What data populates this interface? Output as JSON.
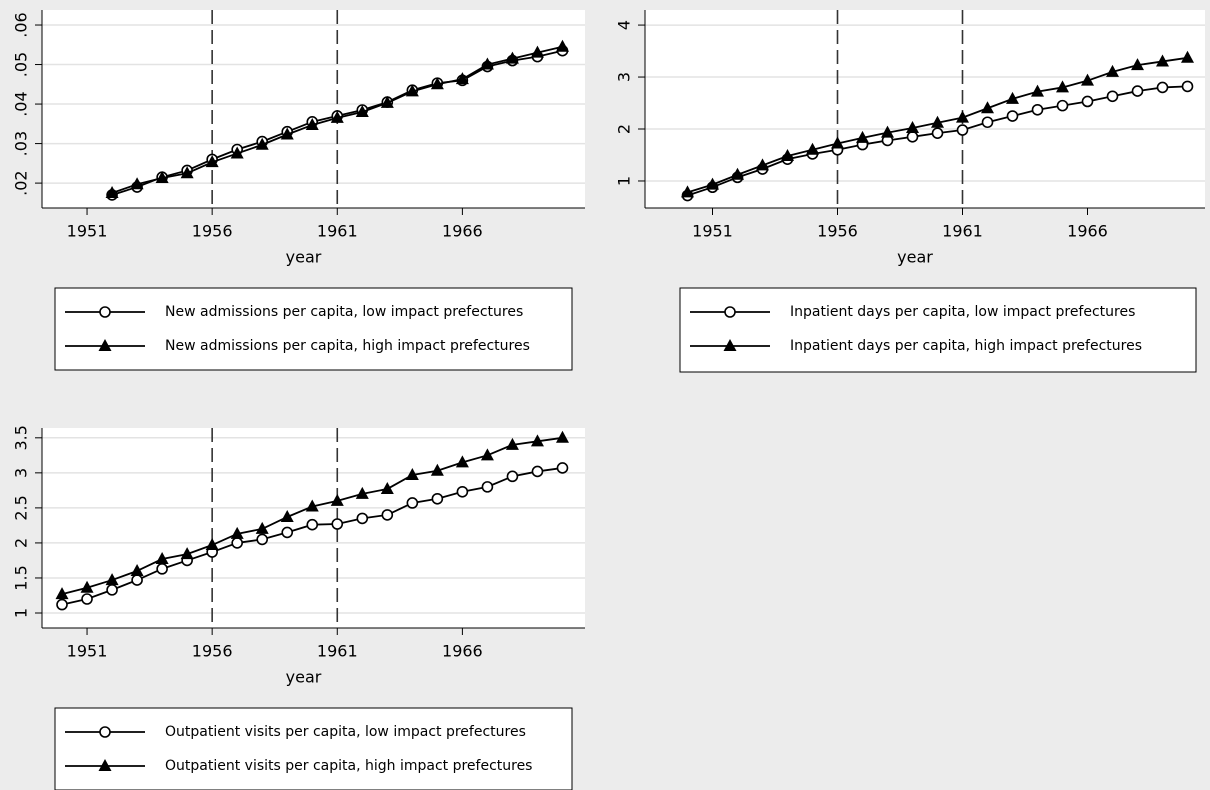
{
  "chart_data": [
    {
      "type": "line",
      "xlabel": "year",
      "x": [
        1952,
        1953,
        1954,
        1955,
        1956,
        1957,
        1958,
        1959,
        1960,
        1961,
        1962,
        1963,
        1964,
        1965,
        1966,
        1967,
        1968,
        1969,
        1970
      ],
      "xlim": [
        1949.2,
        1970.9
      ],
      "xticks": [
        1951,
        1956,
        1961,
        1966
      ],
      "xlines": [
        1956,
        1961
      ],
      "ylim": [
        0.0137,
        0.0638
      ],
      "yticks": [
        {
          "value": 0.02,
          "label": ".02"
        },
        {
          "value": 0.03,
          "label": ".03"
        },
        {
          "value": 0.04,
          "label": ".04"
        },
        {
          "value": 0.05,
          "label": ".05"
        },
        {
          "value": 0.06,
          "label": ".06"
        }
      ],
      "grid": true,
      "series": [
        {
          "name": "New admissions per capita, low impact prefectures",
          "color": "#000000",
          "marker": "circle",
          "values": [
            0.017,
            0.019,
            0.0215,
            0.0232,
            0.026,
            0.0285,
            0.0305,
            0.033,
            0.0355,
            0.037,
            0.0385,
            0.0405,
            0.0435,
            0.0453,
            0.046,
            0.0495,
            0.051,
            0.052,
            0.0535
          ]
        },
        {
          "name": "New admissions per capita, high impact prefectures",
          "color": "#000000",
          "marker": "triangle",
          "values": [
            0.0175,
            0.0197,
            0.0213,
            0.0225,
            0.0253,
            0.0275,
            0.0297,
            0.0323,
            0.0347,
            0.0365,
            0.038,
            0.0403,
            0.0432,
            0.045,
            0.0463,
            0.05,
            0.0515,
            0.053,
            0.0545
          ]
        }
      ]
    },
    {
      "type": "line",
      "xlabel": "year",
      "x": [
        1950,
        1951,
        1952,
        1953,
        1954,
        1955,
        1956,
        1957,
        1958,
        1959,
        1960,
        1961,
        1962,
        1963,
        1964,
        1965,
        1966,
        1967,
        1968,
        1969,
        1970
      ],
      "xlim": [
        1948.3,
        1970.7
      ],
      "xticks": [
        1951,
        1956,
        1961,
        1966
      ],
      "xlines": [
        1956,
        1961
      ],
      "ylim": [
        0.48,
        4.29
      ],
      "yticks": [
        1,
        2,
        3,
        4
      ],
      "grid": true,
      "series": [
        {
          "name": "Inpatient days per capita, low impact prefectures",
          "color": "#000000",
          "marker": "circle",
          "values": [
            0.72,
            0.88,
            1.07,
            1.23,
            1.42,
            1.52,
            1.6,
            1.7,
            1.78,
            1.85,
            1.92,
            1.98,
            2.13,
            2.25,
            2.37,
            2.45,
            2.53,
            2.63,
            2.73,
            2.8,
            2.82
          ]
        },
        {
          "name": "Inpatient days per capita, high impact prefectures",
          "color": "#000000",
          "marker": "triangle",
          "values": [
            0.78,
            0.93,
            1.12,
            1.3,
            1.48,
            1.6,
            1.72,
            1.83,
            1.93,
            2.02,
            2.12,
            2.22,
            2.4,
            2.58,
            2.72,
            2.8,
            2.93,
            3.1,
            3.23,
            3.3,
            3.37
          ]
        }
      ]
    },
    {
      "type": "line",
      "xlabel": "year",
      "x": [
        1950,
        1951,
        1952,
        1953,
        1954,
        1955,
        1956,
        1957,
        1958,
        1959,
        1960,
        1961,
        1962,
        1963,
        1964,
        1965,
        1966,
        1967,
        1968,
        1969,
        1970
      ],
      "xlim": [
        1949.2,
        1970.9
      ],
      "xticks": [
        1951,
        1956,
        1961,
        1966
      ],
      "xlines": [
        1956,
        1961
      ],
      "ylim": [
        0.786,
        3.64
      ],
      "yticks": [
        1,
        1.5,
        2,
        2.5,
        3,
        3.5
      ],
      "grid": true,
      "series": [
        {
          "name": "Outpatient visits per capita, low impact prefectures",
          "color": "#000000",
          "marker": "circle",
          "values": [
            1.12,
            1.2,
            1.33,
            1.47,
            1.63,
            1.75,
            1.87,
            2.0,
            2.05,
            2.15,
            2.26,
            2.27,
            2.35,
            2.4,
            2.57,
            2.63,
            2.73,
            2.8,
            2.95,
            3.02,
            3.07
          ]
        },
        {
          "name": "Outpatient visits per capita, high impact prefectures",
          "color": "#000000",
          "marker": "triangle",
          "values": [
            1.27,
            1.36,
            1.47,
            1.6,
            1.77,
            1.84,
            1.97,
            2.13,
            2.2,
            2.37,
            2.52,
            2.6,
            2.7,
            2.77,
            2.97,
            3.03,
            3.15,
            3.25,
            3.4,
            3.45,
            3.5
          ]
        }
      ]
    }
  ]
}
